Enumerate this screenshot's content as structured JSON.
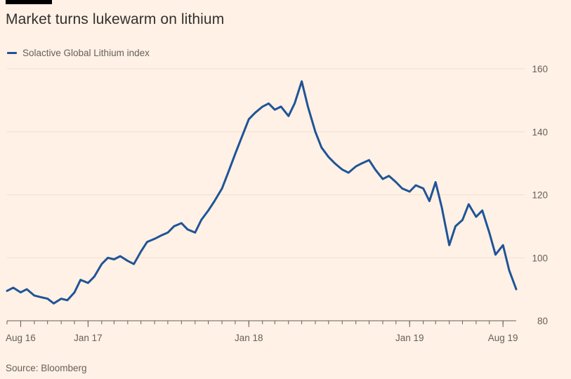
{
  "title": "Market turns lukewarm on lithium",
  "source": "Source: Bloomberg",
  "colors": {
    "background": "#fff1e5",
    "line": "#1f5497",
    "grid": "#f2dfce",
    "axis": "#66605c"
  },
  "chart_data": {
    "type": "line",
    "title": "Market turns lukewarm on lithium",
    "xlabel": "",
    "ylabel": "",
    "ylim": [
      80,
      160
    ],
    "xlim": [
      "2016-07-01",
      "2019-08-31"
    ],
    "grid": true,
    "y_axis_side": "right",
    "legend_placement": "top-left",
    "yticks": [
      160,
      140,
      120,
      100,
      80
    ],
    "xticks": [
      {
        "label": "Aug 16",
        "date": "2016-08-01"
      },
      {
        "label": "Jan 17",
        "date": "2017-01-01"
      },
      {
        "label": "Jan 18",
        "date": "2018-01-01"
      },
      {
        "label": "Jan 19",
        "date": "2019-01-01"
      },
      {
        "label": "Aug 19",
        "date": "2019-08-01"
      }
    ],
    "series": [
      {
        "name": "Solactive Global Lithium index",
        "points": [
          [
            "2016-07-01",
            89.5
          ],
          [
            "2016-07-15",
            90.5
          ],
          [
            "2016-08-01",
            89
          ],
          [
            "2016-08-15",
            90
          ],
          [
            "2016-09-01",
            88
          ],
          [
            "2016-09-15",
            87.5
          ],
          [
            "2016-10-01",
            87
          ],
          [
            "2016-10-15",
            85.5
          ],
          [
            "2016-11-01",
            87
          ],
          [
            "2016-11-15",
            86.5
          ],
          [
            "2016-12-01",
            89
          ],
          [
            "2016-12-15",
            93
          ],
          [
            "2017-01-01",
            92
          ],
          [
            "2017-01-15",
            94
          ],
          [
            "2017-02-01",
            98
          ],
          [
            "2017-02-15",
            100
          ],
          [
            "2017-03-01",
            99.5
          ],
          [
            "2017-03-15",
            100.5
          ],
          [
            "2017-04-01",
            99
          ],
          [
            "2017-04-15",
            98
          ],
          [
            "2017-05-01",
            102
          ],
          [
            "2017-05-15",
            105
          ],
          [
            "2017-06-01",
            106
          ],
          [
            "2017-06-15",
            107
          ],
          [
            "2017-07-01",
            108
          ],
          [
            "2017-07-15",
            110
          ],
          [
            "2017-08-01",
            111
          ],
          [
            "2017-08-15",
            109
          ],
          [
            "2017-09-01",
            108
          ],
          [
            "2017-09-15",
            112
          ],
          [
            "2017-10-01",
            115
          ],
          [
            "2017-10-15",
            118
          ],
          [
            "2017-11-01",
            122
          ],
          [
            "2017-11-15",
            127
          ],
          [
            "2017-12-01",
            133
          ],
          [
            "2017-12-15",
            138
          ],
          [
            "2018-01-01",
            144
          ],
          [
            "2018-01-15",
            146
          ],
          [
            "2018-02-01",
            148
          ],
          [
            "2018-02-15",
            149
          ],
          [
            "2018-03-01",
            147
          ],
          [
            "2018-03-15",
            148
          ],
          [
            "2018-04-01",
            145
          ],
          [
            "2018-04-15",
            149
          ],
          [
            "2018-05-01",
            156
          ],
          [
            "2018-05-15",
            148
          ],
          [
            "2018-06-01",
            140
          ],
          [
            "2018-06-15",
            135
          ],
          [
            "2018-07-01",
            132
          ],
          [
            "2018-07-15",
            130
          ],
          [
            "2018-08-01",
            128
          ],
          [
            "2018-08-15",
            127
          ],
          [
            "2018-09-01",
            129
          ],
          [
            "2018-09-15",
            130
          ],
          [
            "2018-10-01",
            131
          ],
          [
            "2018-10-15",
            128
          ],
          [
            "2018-11-01",
            125
          ],
          [
            "2018-11-15",
            126
          ],
          [
            "2018-12-01",
            124
          ],
          [
            "2018-12-15",
            122
          ],
          [
            "2019-01-01",
            121
          ],
          [
            "2019-01-15",
            123
          ],
          [
            "2019-02-01",
            122
          ],
          [
            "2019-02-15",
            118
          ],
          [
            "2019-03-01",
            124
          ],
          [
            "2019-03-15",
            116
          ],
          [
            "2019-04-01",
            104
          ],
          [
            "2019-04-15",
            110
          ],
          [
            "2019-05-01",
            112
          ],
          [
            "2019-05-15",
            117
          ],
          [
            "2019-06-01",
            113
          ],
          [
            "2019-06-15",
            115
          ],
          [
            "2019-07-01",
            108
          ],
          [
            "2019-07-15",
            101
          ],
          [
            "2019-08-01",
            104
          ],
          [
            "2019-08-15",
            96
          ],
          [
            "2019-08-31",
            90
          ]
        ]
      }
    ]
  }
}
